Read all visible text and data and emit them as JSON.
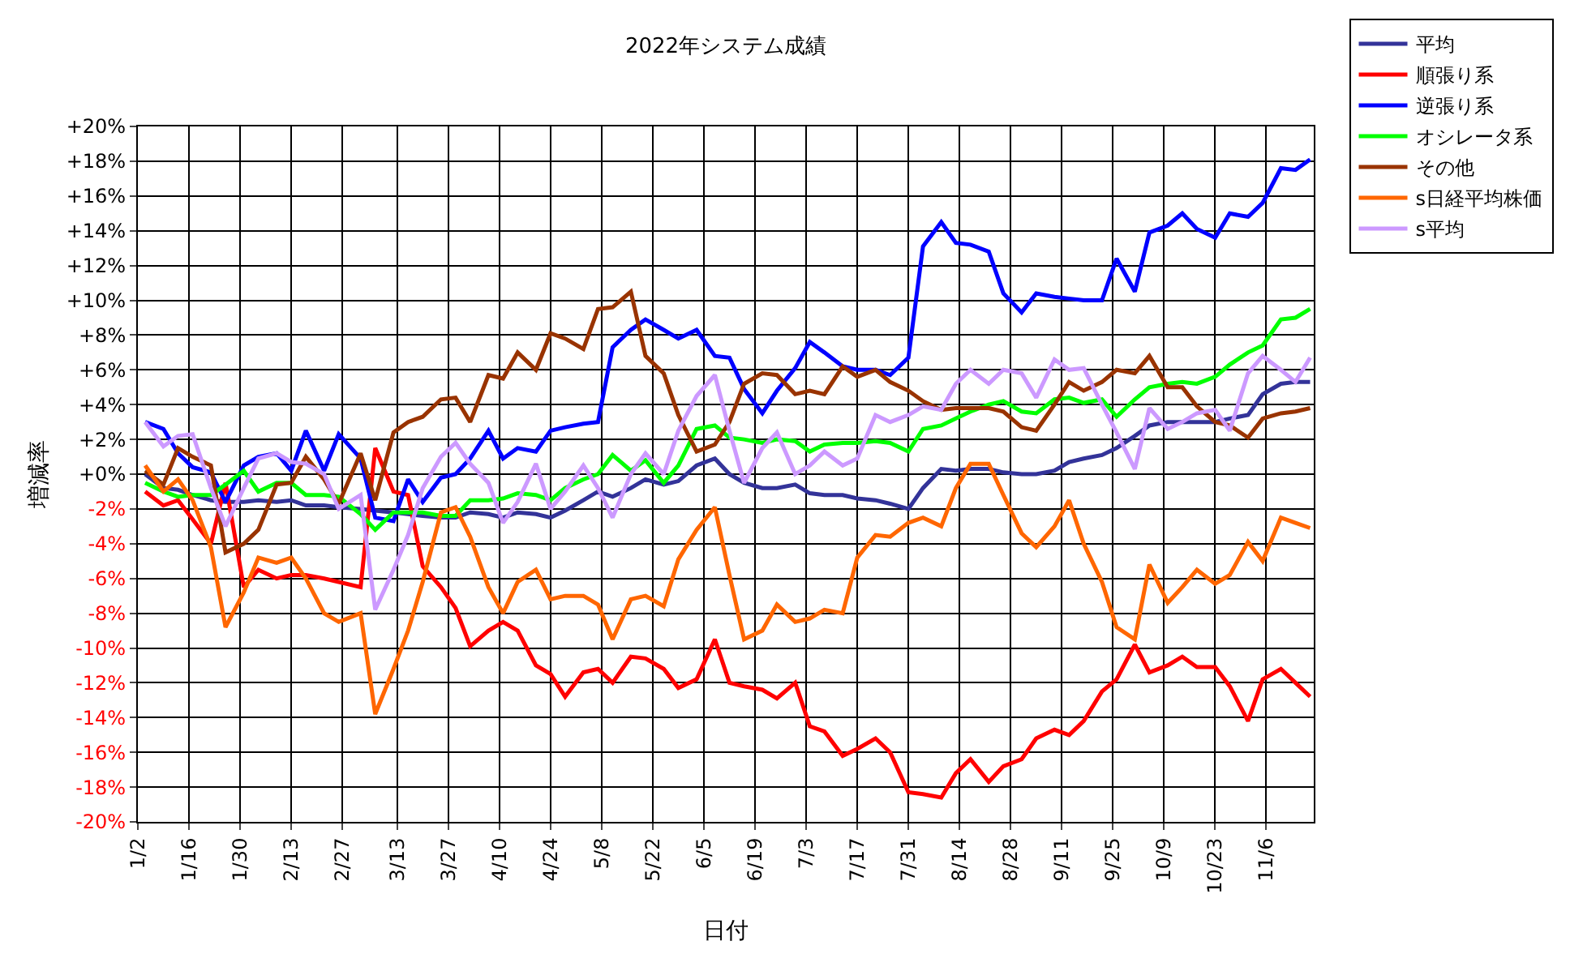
{
  "chart_data": {
    "type": "line",
    "title": "2022年システム成績",
    "xlabel": "日付",
    "ylabel": "増減率",
    "x": [
      "--01-04",
      "--01-09",
      "--01-13",
      "--01-17",
      "--01-22",
      "--01-26",
      "--01-31",
      "--02-04",
      "--02-09",
      "--02-13",
      "--02-17",
      "--02-22",
      "--02-26",
      "--03-03",
      "--03-07",
      "--03-12",
      "--03-16",
      "--03-20",
      "--03-25",
      "--03-29",
      "--04-02",
      "--04-07",
      "--04-11",
      "--04-15",
      "--04-20",
      "--04-24",
      "--04-28",
      "--05-03",
      "--05-07",
      "--05-11",
      "--05-16",
      "--05-20",
      "--05-25",
      "--05-29",
      "--06-03",
      "--06-08",
      "--06-12",
      "--06-16",
      "--06-21",
      "--06-25",
      "--06-30",
      "--07-04",
      "--07-08",
      "--07-13",
      "--07-17",
      "--07-22",
      "--07-26",
      "--07-31",
      "--08-04",
      "--08-09",
      "--08-13",
      "--08-17",
      "--08-22",
      "--08-26",
      "--08-31",
      "--09-04",
      "--09-09",
      "--09-13",
      "--09-17",
      "--09-22",
      "--09-26",
      "--10-01",
      "--10-05",
      "--10-10",
      "--10-14",
      "--10-18",
      "--10-23",
      "--10-27",
      "--11-01",
      "--11-05",
      "--11-10",
      "--11-14",
      "--11-18"
    ],
    "series": [
      {
        "name": "平均",
        "color": "#333399",
        "values": [
          0.0,
          -0.8,
          -0.9,
          -1.2,
          -1.5,
          -1.6,
          -1.6,
          -1.5,
          -1.6,
          -1.5,
          -1.8,
          -1.8,
          -1.9,
          -2.0,
          -2.1,
          -2.2,
          -2.3,
          -2.4,
          -2.5,
          -2.5,
          -2.2,
          -2.3,
          -2.5,
          -2.2,
          -2.3,
          -2.5,
          -2.1,
          -1.5,
          -1.0,
          -1.3,
          -0.8,
          -0.3,
          -0.6,
          -0.4,
          0.5,
          0.9,
          0.0,
          -0.5,
          -0.8,
          -0.8,
          -0.6,
          -1.1,
          -1.2,
          -1.2,
          -1.4,
          -1.5,
          -1.7,
          -2.0,
          -0.8,
          0.3,
          0.2,
          0.3,
          0.3,
          0.1,
          0.0,
          0.0,
          0.2,
          0.7,
          0.9,
          1.1,
          1.5,
          2.2,
          2.8,
          3.0,
          3.0,
          3.0,
          3.0,
          3.2,
          3.4,
          4.6,
          5.2,
          5.3,
          5.3
        ]
      },
      {
        "name": "順張り系",
        "color": "#ff0000",
        "values": [
          -1.0,
          -1.8,
          -1.5,
          -2.6,
          -4.0,
          -0.5,
          -6.5,
          -5.5,
          -6.0,
          -5.8,
          -5.8,
          -6.0,
          -6.2,
          -6.5,
          1.5,
          -1.0,
          -1.2,
          -5.3,
          -6.5,
          -7.7,
          -9.9,
          -9.0,
          -8.5,
          -9.0,
          -11.0,
          -11.5,
          -12.8,
          -11.4,
          -11.2,
          -12.0,
          -10.5,
          -10.6,
          -11.2,
          -12.3,
          -11.8,
          -9.5,
          -12.0,
          -12.2,
          -12.4,
          -12.9,
          -12.0,
          -14.5,
          -14.8,
          -16.2,
          -15.8,
          -15.2,
          -16.0,
          -18.3,
          -18.4,
          -18.6,
          -17.2,
          -16.4,
          -17.7,
          -16.8,
          -16.4,
          -15.2,
          -14.7,
          -15.0,
          -14.2,
          -12.5,
          -11.8,
          -9.8,
          -11.4,
          -11.0,
          -10.5,
          -11.1,
          -11.1,
          -12.2,
          -14.2,
          -11.8,
          -11.2,
          -12.0,
          -12.8
        ]
      },
      {
        "name": "逆張り系",
        "color": "#0000ff",
        "values": [
          3.0,
          2.6,
          1.2,
          0.4,
          0.1,
          -1.6,
          0.5,
          1.0,
          1.2,
          0.2,
          2.5,
          0.2,
          2.3,
          0.9,
          -2.5,
          -2.7,
          -0.3,
          -1.6,
          -0.2,
          0.0,
          0.9,
          2.5,
          0.9,
          1.5,
          1.3,
          2.5,
          2.7,
          2.9,
          3.0,
          7.3,
          8.3,
          8.9,
          8.3,
          7.8,
          8.3,
          6.8,
          6.7,
          4.9,
          3.5,
          4.8,
          6.1,
          7.6,
          7.0,
          6.2,
          6.0,
          6.0,
          5.7,
          6.7,
          13.1,
          14.5,
          13.3,
          13.2,
          12.8,
          10.4,
          9.3,
          10.4,
          10.2,
          10.1,
          10.0,
          10.0,
          12.4,
          10.5,
          13.9,
          14.3,
          15.0,
          14.1,
          13.6,
          15.0,
          14.8,
          15.6,
          17.6,
          17.5,
          18.1
        ]
      },
      {
        "name": "オシレータ系",
        "color": "#00ff00",
        "values": [
          -0.5,
          -1.0,
          -1.3,
          -1.2,
          -1.2,
          -0.6,
          0.2,
          -1.0,
          -0.5,
          -0.5,
          -1.2,
          -1.2,
          -1.3,
          -2.3,
          -3.2,
          -2.2,
          -2.2,
          -2.2,
          -2.4,
          -2.4,
          -1.5,
          -1.5,
          -1.4,
          -1.1,
          -1.2,
          -1.5,
          -0.8,
          -0.3,
          0.0,
          1.1,
          0.2,
          0.8,
          -0.5,
          0.5,
          2.6,
          2.8,
          2.1,
          2.0,
          1.8,
          2.0,
          1.9,
          1.3,
          1.7,
          1.8,
          1.8,
          1.9,
          1.8,
          1.3,
          2.6,
          2.8,
          3.2,
          3.6,
          4.0,
          4.2,
          3.6,
          3.5,
          4.3,
          4.4,
          4.1,
          4.3,
          3.3,
          4.3,
          5.0,
          5.2,
          5.3,
          5.2,
          5.6,
          6.3,
          7.0,
          7.4,
          8.9,
          9.0,
          9.5
        ]
      },
      {
        "name": "その他",
        "color": "#993300",
        "values": [
          0.2,
          -0.6,
          1.5,
          1.0,
          0.5,
          -4.5,
          -4.0,
          -3.2,
          -0.6,
          -0.5,
          1.0,
          -0.3,
          -1.7,
          1.2,
          -1.5,
          2.4,
          3.0,
          3.3,
          4.3,
          4.4,
          3.0,
          5.7,
          5.5,
          7.0,
          6.0,
          8.1,
          7.8,
          7.2,
          9.5,
          9.6,
          10.5,
          6.8,
          5.8,
          3.4,
          1.3,
          1.7,
          3.0,
          5.2,
          5.8,
          5.7,
          4.6,
          4.8,
          4.6,
          6.2,
          5.6,
          6.0,
          5.3,
          4.8,
          4.2,
          3.7,
          3.8,
          3.8,
          3.8,
          3.6,
          2.7,
          2.5,
          4.0,
          5.3,
          4.8,
          5.3,
          6.0,
          5.8,
          6.8,
          5.0,
          5.0,
          3.9,
          3.0,
          2.8,
          2.1,
          3.2,
          3.5,
          3.6,
          3.8
        ]
      },
      {
        "name": "s日経平均株価",
        "color": "#ff6600",
        "values": [
          0.5,
          -1.0,
          -0.3,
          -1.5,
          -4.2,
          -8.8,
          -6.8,
          -4.8,
          -5.1,
          -4.8,
          -6.0,
          -8.0,
          -8.5,
          -8.0,
          -13.8,
          -11.2,
          -9.0,
          -6.2,
          -2.2,
          -1.9,
          -3.6,
          -6.5,
          -8.0,
          -6.2,
          -5.5,
          -7.2,
          -7.0,
          -7.0,
          -7.5,
          -9.5,
          -7.2,
          -7.0,
          -7.6,
          -4.9,
          -3.2,
          -1.9,
          -5.8,
          -9.5,
          -9.0,
          -7.5,
          -8.5,
          -8.3,
          -7.8,
          -8.0,
          -4.8,
          -3.5,
          -3.6,
          -2.8,
          -2.5,
          -3.0,
          -0.8,
          0.6,
          0.6,
          -1.2,
          -3.4,
          -4.2,
          -3.0,
          -1.5,
          -4.0,
          -6.2,
          -8.8,
          -9.5,
          -5.2,
          -7.4,
          -6.5,
          -5.5,
          -6.3,
          -5.8,
          -3.9,
          -5.0,
          -2.5,
          -2.8,
          -3.1
        ]
      },
      {
        "name": "s平均",
        "color": "#cc99ff",
        "values": [
          3.0,
          1.6,
          2.2,
          2.3,
          -0.8,
          -3.0,
          -0.8,
          0.9,
          1.2,
          0.7,
          0.6,
          0.0,
          -2.0,
          -1.2,
          -7.8,
          -5.5,
          -3.5,
          -0.8,
          1.0,
          1.8,
          0.6,
          -0.5,
          -2.8,
          -1.6,
          0.6,
          -2.0,
          -1.0,
          0.5,
          -0.8,
          -2.5,
          0.0,
          1.2,
          0.0,
          2.5,
          4.5,
          5.7,
          2.5,
          -0.5,
          1.5,
          2.4,
          0.0,
          0.5,
          1.3,
          0.5,
          0.9,
          3.4,
          3.0,
          3.4,
          3.9,
          3.7,
          5.2,
          6.0,
          5.2,
          6.0,
          5.8,
          4.4,
          6.6,
          6.0,
          6.1,
          4.0,
          2.4,
          0.3,
          3.8,
          2.6,
          3.0,
          3.5,
          3.7,
          2.5,
          5.8,
          6.8,
          6.0,
          5.3,
          6.7
        ]
      }
    ],
    "xlim": [
      "--01-02",
      "--11-19"
    ],
    "xticks": [
      {
        "value": "--01-02",
        "label": "1/2"
      },
      {
        "value": "--01-16",
        "label": "1/16"
      },
      {
        "value": "--01-30",
        "label": "1/30"
      },
      {
        "value": "--02-13",
        "label": "2/13"
      },
      {
        "value": "--02-27",
        "label": "2/27"
      },
      {
        "value": "--03-13",
        "label": "3/13"
      },
      {
        "value": "--03-27",
        "label": "3/27"
      },
      {
        "value": "--04-10",
        "label": "4/10"
      },
      {
        "value": "--04-24",
        "label": "4/24"
      },
      {
        "value": "--05-08",
        "label": "5/8"
      },
      {
        "value": "--05-22",
        "label": "5/22"
      },
      {
        "value": "--06-05",
        "label": "6/5"
      },
      {
        "value": "--06-19",
        "label": "6/19"
      },
      {
        "value": "--07-03",
        "label": "7/3"
      },
      {
        "value": "--07-17",
        "label": "7/17"
      },
      {
        "value": "--07-31",
        "label": "7/31"
      },
      {
        "value": "--08-14",
        "label": "8/14"
      },
      {
        "value": "--08-28",
        "label": "8/28"
      },
      {
        "value": "--09-11",
        "label": "9/11"
      },
      {
        "value": "--09-25",
        "label": "9/25"
      },
      {
        "value": "--10-09",
        "label": "10/9"
      },
      {
        "value": "--10-23",
        "label": "10/23"
      },
      {
        "value": "--11-06",
        "label": "11/6"
      }
    ],
    "ylim": [
      -20,
      20
    ],
    "yticks": [
      {
        "value": 20,
        "label": "+20%"
      },
      {
        "value": 18,
        "label": "+18%"
      },
      {
        "value": 16,
        "label": "+16%"
      },
      {
        "value": 14,
        "label": "+14%"
      },
      {
        "value": 12,
        "label": "+12%"
      },
      {
        "value": 10,
        "label": "+10%"
      },
      {
        "value": 8,
        "label": "+8%"
      },
      {
        "value": 6,
        "label": "+6%"
      },
      {
        "value": 4,
        "label": "+4%"
      },
      {
        "value": 2,
        "label": "+2%"
      },
      {
        "value": 0,
        "label": "+0%"
      },
      {
        "value": -2,
        "label": "-2%"
      },
      {
        "value": -4,
        "label": "-4%"
      },
      {
        "value": -6,
        "label": "-6%"
      },
      {
        "value": -8,
        "label": "-8%"
      },
      {
        "value": -10,
        "label": "-10%"
      },
      {
        "value": -12,
        "label": "-12%"
      },
      {
        "value": -14,
        "label": "-14%"
      },
      {
        "value": -16,
        "label": "-16%"
      },
      {
        "value": -18,
        "label": "-18%"
      },
      {
        "value": -20,
        "label": "-20%"
      }
    ],
    "grid": true,
    "legend": "top right",
    "marker": "none",
    "line_style": "solid"
  }
}
